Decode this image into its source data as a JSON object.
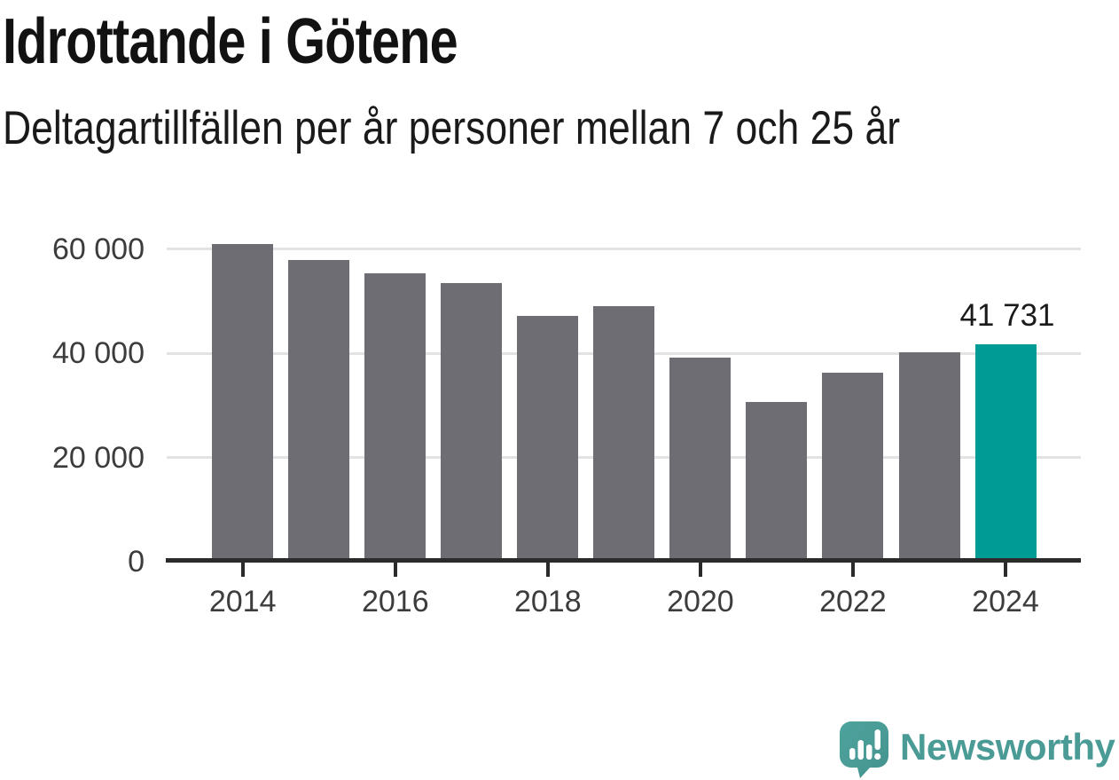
{
  "header": {
    "title": "Idrottande i Götene",
    "subtitle": "Deltagartillfällen per år personer mellan 7 och 25 år"
  },
  "chart_data": {
    "type": "bar",
    "title": "Idrottande i Götene",
    "subtitle": "Deltagartillfällen per år personer mellan 7 och 25 år",
    "categories": [
      "2014",
      "2015",
      "2016",
      "2017",
      "2018",
      "2019",
      "2020",
      "2021",
      "2022",
      "2023",
      "2024"
    ],
    "values": [
      61000,
      57900,
      55400,
      53500,
      47200,
      49000,
      39100,
      30600,
      36200,
      40100,
      41731
    ],
    "highlight_index": 10,
    "highlight_label": "41 731",
    "xlabel": "",
    "ylabel": "",
    "ylim": [
      0,
      63000
    ],
    "yticks": [
      0,
      20000,
      40000,
      60000
    ],
    "ytick_labels": [
      "0",
      "20 000",
      "40 000",
      "60 000"
    ],
    "xtick_years": [
      "2014",
      "2016",
      "2018",
      "2020",
      "2022",
      "2024"
    ],
    "grid": true,
    "legend": false,
    "bar_color": "#6E6D73",
    "highlight_color": "#009B94",
    "grid_color": "#E3E3E3",
    "axis_color": "#2B2B2B",
    "tick_label_color": "#3C3C3C"
  },
  "footer": {
    "brand": "Newsworthy",
    "brand_color": "#4A9B96",
    "logo_icon": "newsworthy-speech-bubble-barchart-icon"
  }
}
